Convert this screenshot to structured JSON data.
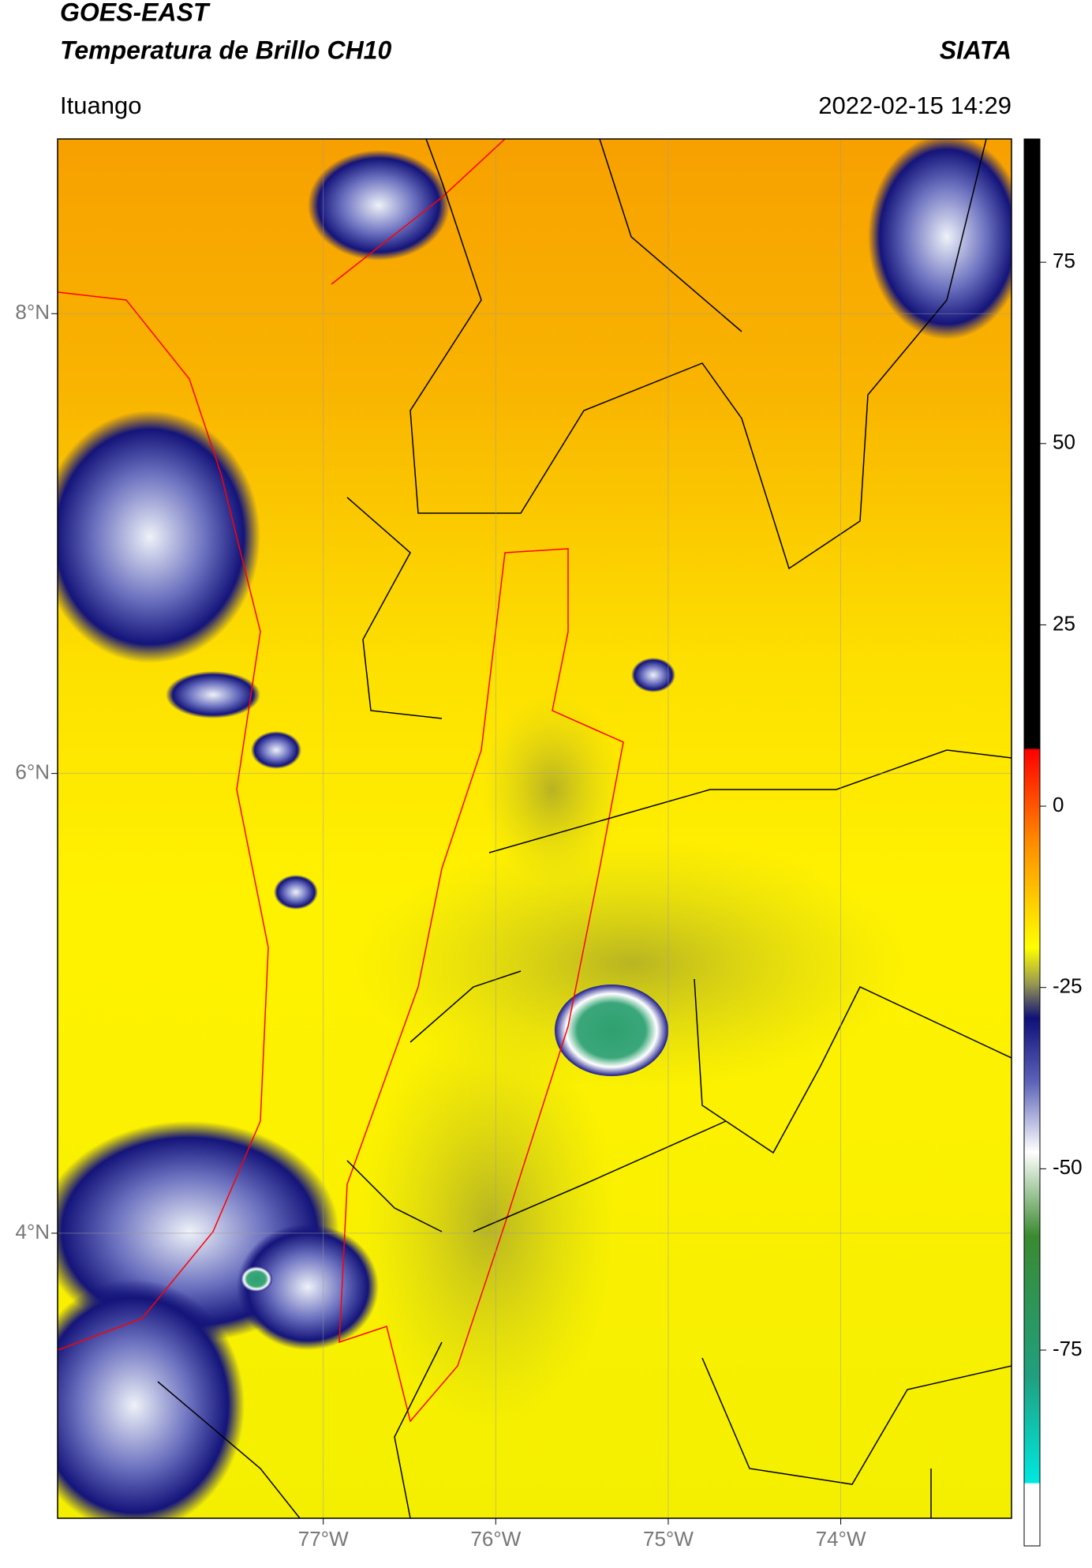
{
  "chart_data": {
    "type": "map",
    "title": "GOES-EAST",
    "subtitle": "Temperatura de Brillo CH10",
    "source": "SIATA",
    "region": "Ituango",
    "datetime": "2022-02-15 14:29",
    "xlim": [
      -78.54,
      -73.01
    ],
    "ylim": [
      2.76,
      8.76
    ],
    "xticks": [
      {
        "value": -77,
        "label": "77°W"
      },
      {
        "value": -76,
        "label": "76°W"
      },
      {
        "value": -75,
        "label": "75°W"
      },
      {
        "value": -74,
        "label": "74°W"
      }
    ],
    "yticks": [
      {
        "value": 8,
        "label": "8°N"
      },
      {
        "value": 6,
        "label": "6°N"
      },
      {
        "value": 4,
        "label": "4°N"
      }
    ],
    "grid": true,
    "colorbar": {
      "lim": [
        -102,
        92
      ],
      "ticks": [
        75,
        50,
        25,
        0,
        -25,
        -50,
        -75
      ]
    }
  }
}
